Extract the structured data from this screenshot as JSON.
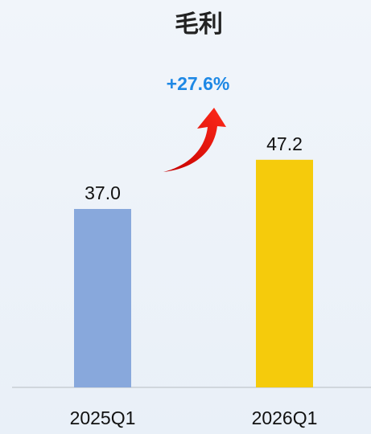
{
  "chart_data": {
    "type": "bar",
    "title": "毛利",
    "annotation": "+27.6%",
    "categories": [
      "2025Q1",
      "2026Q1"
    ],
    "values": [
      37.0,
      47.2
    ],
    "value_labels": [
      "37.0",
      "47.2"
    ],
    "colors": [
      "#88a8dc",
      "#f5cb0c"
    ],
    "ylim": [
      0,
      80
    ]
  }
}
